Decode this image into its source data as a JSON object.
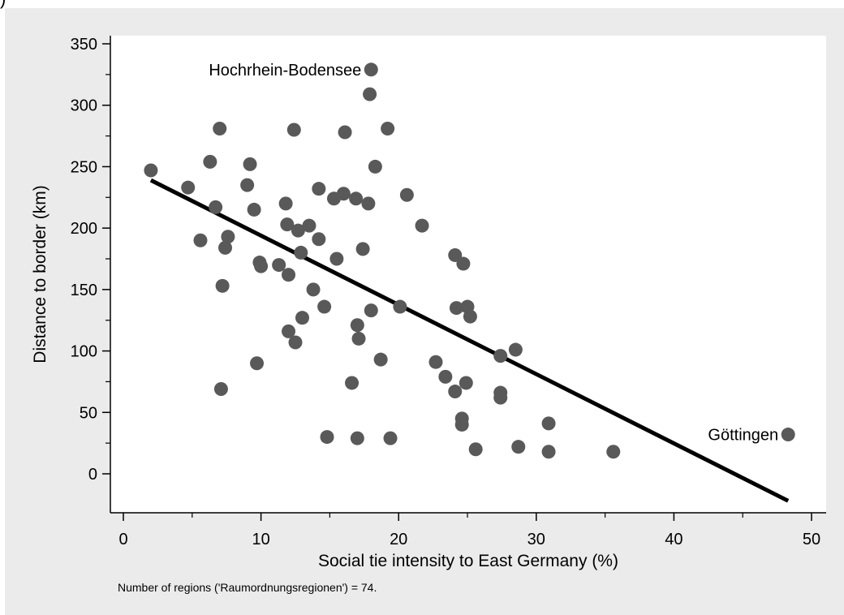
{
  "panel_label": ")",
  "chart_data": {
    "type": "scatter",
    "xlabel": "Social tie intensity to East Germany (%)",
    "ylabel": "Distance to border (km)",
    "note": "Number of regions ('Raumordnungsregionen') = 74.",
    "xlim": [
      -1,
      51
    ],
    "ylim": [
      -32,
      358
    ],
    "x_ticks": [
      0,
      10,
      20,
      30,
      40,
      50
    ],
    "y_ticks": [
      0,
      50,
      100,
      150,
      200,
      250,
      300,
      350
    ],
    "x_minor_ticks": [
      5,
      15,
      25,
      35,
      45
    ],
    "y_minor_ticks": [
      25,
      75,
      125,
      175,
      225,
      275,
      325
    ],
    "grid": false,
    "legend": "none",
    "colors": {
      "background": "#ebebeb",
      "plot_area": "#ffffff",
      "marker": "#595959",
      "fit_line": "#000000"
    },
    "points": [
      {
        "x": 2.0,
        "y": 247
      },
      {
        "x": 4.7,
        "y": 233
      },
      {
        "x": 5.6,
        "y": 190
      },
      {
        "x": 6.3,
        "y": 254
      },
      {
        "x": 6.7,
        "y": 217
      },
      {
        "x": 7.0,
        "y": 281
      },
      {
        "x": 7.2,
        "y": 153
      },
      {
        "x": 7.1,
        "y": 69
      },
      {
        "x": 7.4,
        "y": 184
      },
      {
        "x": 7.6,
        "y": 193
      },
      {
        "x": 9.0,
        "y": 235
      },
      {
        "x": 9.2,
        "y": 252
      },
      {
        "x": 9.5,
        "y": 215
      },
      {
        "x": 9.7,
        "y": 90
      },
      {
        "x": 9.9,
        "y": 172
      },
      {
        "x": 10.0,
        "y": 169
      },
      {
        "x": 11.3,
        "y": 170
      },
      {
        "x": 11.8,
        "y": 220
      },
      {
        "x": 11.9,
        "y": 203
      },
      {
        "x": 12.0,
        "y": 162
      },
      {
        "x": 12.0,
        "y": 116
      },
      {
        "x": 12.4,
        "y": 280
      },
      {
        "x": 12.5,
        "y": 107
      },
      {
        "x": 12.7,
        "y": 198
      },
      {
        "x": 12.9,
        "y": 180
      },
      {
        "x": 13.0,
        "y": 127
      },
      {
        "x": 13.5,
        "y": 202
      },
      {
        "x": 14.2,
        "y": 232
      },
      {
        "x": 14.2,
        "y": 191
      },
      {
        "x": 14.6,
        "y": 136
      },
      {
        "x": 14.8,
        "y": 30
      },
      {
        "x": 15.3,
        "y": 224
      },
      {
        "x": 15.5,
        "y": 175
      },
      {
        "x": 16.1,
        "y": 278
      },
      {
        "x": 16.6,
        "y": 74
      },
      {
        "x": 16.9,
        "y": 224
      },
      {
        "x": 17.0,
        "y": 121
      },
      {
        "x": 17.1,
        "y": 110
      },
      {
        "x": 17.0,
        "y": 29
      },
      {
        "x": 17.4,
        "y": 183
      },
      {
        "x": 17.8,
        "y": 220
      },
      {
        "x": 17.9,
        "y": 309
      },
      {
        "x": 18.0,
        "y": 133
      },
      {
        "x": 18.3,
        "y": 250
      },
      {
        "x": 18.7,
        "y": 93
      },
      {
        "x": 19.2,
        "y": 281
      },
      {
        "x": 19.4,
        "y": 29
      },
      {
        "x": 20.1,
        "y": 136
      },
      {
        "x": 20.6,
        "y": 227
      },
      {
        "x": 21.7,
        "y": 202
      },
      {
        "x": 22.7,
        "y": 91
      },
      {
        "x": 23.4,
        "y": 79
      },
      {
        "x": 24.1,
        "y": 178
      },
      {
        "x": 24.2,
        "y": 135
      },
      {
        "x": 24.1,
        "y": 67
      },
      {
        "x": 24.7,
        "y": 171
      },
      {
        "x": 24.6,
        "y": 45
      },
      {
        "x": 24.6,
        "y": 40
      },
      {
        "x": 24.9,
        "y": 74
      },
      {
        "x": 25.0,
        "y": 136
      },
      {
        "x": 25.2,
        "y": 128
      },
      {
        "x": 25.6,
        "y": 20
      },
      {
        "x": 27.4,
        "y": 96
      },
      {
        "x": 27.4,
        "y": 66
      },
      {
        "x": 27.4,
        "y": 62
      },
      {
        "x": 28.5,
        "y": 101
      },
      {
        "x": 28.7,
        "y": 22
      },
      {
        "x": 30.9,
        "y": 41
      },
      {
        "x": 30.9,
        "y": 18
      },
      {
        "x": 35.6,
        "y": 18
      },
      {
        "x": 48.3,
        "y": 32
      },
      {
        "x": 18.0,
        "y": 329
      },
      {
        "x": 16.0,
        "y": 228
      },
      {
        "x": 13.8,
        "y": 150
      }
    ],
    "annotations": [
      {
        "text": "Hochrhein-Bodensee",
        "x": 18.0,
        "y": 329,
        "side": "left"
      },
      {
        "text": "Göttingen",
        "x": 48.3,
        "y": 32,
        "side": "left"
      }
    ],
    "fit_line": {
      "x1": 2.0,
      "y1": 239,
      "x2": 48.3,
      "y2": -22
    }
  }
}
